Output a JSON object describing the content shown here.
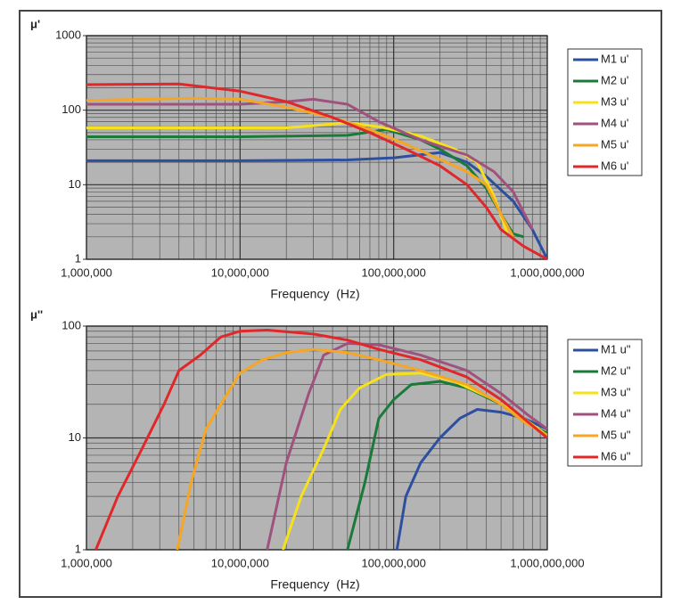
{
  "chart_data": [
    {
      "type": "line",
      "y_label": "μ'",
      "x_label": "Frequency  (Hz)",
      "xscale": "log",
      "yscale": "log",
      "xlim": [
        1000000,
        1000000000
      ],
      "ylim": [
        1,
        1000
      ],
      "xticks": [
        {
          "value": 1000000,
          "label": "1,000,000"
        },
        {
          "value": 10000000,
          "label": "10,000,000"
        },
        {
          "value": 100000000,
          "label": "100,000,000"
        },
        {
          "value": 1000000000,
          "label": "1,000,000,000"
        }
      ],
      "yticks": [
        1,
        10,
        100,
        1000
      ],
      "grid": true,
      "legend": "right",
      "series": [
        {
          "name": "M1 u'",
          "color": "#2e4fa0",
          "x": [
            1000000,
            10000000,
            50000000,
            100000000,
            200000000,
            300000000,
            400000000,
            600000000,
            800000000,
            1000000000
          ],
          "values": [
            21,
            21,
            21.5,
            23,
            27,
            20,
            13,
            6,
            2.5,
            1
          ]
        },
        {
          "name": "M2 u'",
          "color": "#1a7a3a",
          "x": [
            1000000,
            10000000,
            50000000,
            90000000,
            150000000,
            200000000,
            300000000,
            400000000,
            500000000,
            600000000,
            700000000
          ],
          "values": [
            44,
            44,
            46,
            55,
            40,
            30,
            18,
            9,
            4,
            2.2,
            2
          ]
        },
        {
          "name": "M3 u'",
          "color": "#f5e21a",
          "x": [
            1000000,
            20000000,
            30000000,
            50000000,
            80000000,
            150000000,
            250000000,
            350000000,
            450000000,
            550000000
          ],
          "values": [
            58,
            58,
            62,
            68,
            60,
            45,
            30,
            20,
            7,
            2.2
          ]
        },
        {
          "name": "M4 u'",
          "color": "#a0527e",
          "x": [
            1000000,
            10000000,
            20000000,
            30000000,
            50000000,
            80000000,
            150000000,
            300000000,
            450000000,
            600000000,
            800000000
          ],
          "values": [
            120,
            120,
            130,
            140,
            120,
            70,
            40,
            25,
            15,
            8,
            2.5
          ]
        },
        {
          "name": "M5 u'",
          "color": "#f5a623",
          "x": [
            1000000,
            5000000,
            10000000,
            20000000,
            40000000,
            70000000,
            120000000,
            200000000,
            300000000,
            400000000,
            500000000,
            600000000
          ],
          "values": [
            135,
            145,
            140,
            110,
            80,
            55,
            35,
            22,
            15,
            10,
            4,
            2
          ]
        },
        {
          "name": "M6 u'",
          "color": "#e0282a",
          "x": [
            1000000,
            4000000,
            10000000,
            20000000,
            40000000,
            70000000,
            120000000,
            200000000,
            300000000,
            400000000,
            500000000,
            700000000,
            1000000000
          ],
          "values": [
            220,
            225,
            180,
            130,
            80,
            50,
            30,
            18,
            10,
            5,
            2.5,
            1.5,
            1
          ]
        }
      ]
    },
    {
      "type": "line",
      "y_label": "μ''",
      "x_label": "Frequency  (Hz)",
      "xscale": "log",
      "yscale": "log",
      "xlim": [
        1000000,
        1000000000
      ],
      "ylim": [
        1,
        100
      ],
      "xticks": [
        {
          "value": 1000000,
          "label": "1,000,000"
        },
        {
          "value": 10000000,
          "label": "10,000,000"
        },
        {
          "value": 100000000,
          "label": "100,000,000"
        },
        {
          "value": 1000000000,
          "label": "1,000,000,000"
        }
      ],
      "yticks": [
        1,
        10,
        100
      ],
      "grid": true,
      "legend": "right",
      "series": [
        {
          "name": "M1 u\"",
          "color": "#2e4fa0",
          "x": [
            105000000,
            120000000,
            150000000,
            200000000,
            270000000,
            350000000,
            500000000,
            700000000,
            1000000000
          ],
          "values": [
            1,
            3,
            6,
            10,
            15,
            18,
            17,
            15,
            12
          ]
        },
        {
          "name": "M2 u\"",
          "color": "#1a7a3a",
          "x": [
            50000000,
            65000000,
            80000000,
            100000000,
            130000000,
            200000000,
            300000000,
            500000000,
            700000000,
            1000000000
          ],
          "values": [
            1,
            4,
            15,
            22,
            30,
            32,
            28,
            20,
            14,
            11
          ]
        },
        {
          "name": "M3 u\"",
          "color": "#f5e21a",
          "x": [
            19000000,
            25000000,
            35000000,
            45000000,
            60000000,
            90000000,
            150000000,
            250000000,
            450000000,
            700000000,
            1000000000
          ],
          "values": [
            1,
            3,
            8,
            18,
            28,
            37,
            38,
            32,
            22,
            15,
            10.5
          ]
        },
        {
          "name": "M4 u\"",
          "color": "#a0527e",
          "x": [
            15000000,
            20000000,
            28000000,
            35000000,
            50000000,
            80000000,
            150000000,
            300000000,
            500000000,
            750000000,
            1000000000
          ],
          "values": [
            1,
            6,
            25,
            55,
            70,
            68,
            55,
            40,
            25,
            16,
            12
          ]
        },
        {
          "name": "M5 u\"",
          "color": "#f5a623",
          "x": [
            3900000,
            4800000,
            6000000,
            7500000,
            10000000,
            14000000,
            20000000,
            30000000,
            50000000,
            80000000,
            150000000,
            300000000,
            500000000,
            700000000,
            1000000000
          ],
          "values": [
            1,
            4,
            12,
            20,
            38,
            50,
            58,
            62,
            58,
            50,
            40,
            30,
            20,
            14,
            10.5
          ]
        },
        {
          "name": "M6 u\"",
          "color": "#e0282a",
          "x": [
            1150000,
            1600000,
            2300000,
            3200000,
            4000000,
            5500000,
            7500000,
            10000000,
            15000000,
            30000000,
            50000000,
            80000000,
            150000000,
            300000000,
            500000000,
            700000000,
            1000000000
          ],
          "values": [
            1,
            3,
            8,
            20,
            40,
            55,
            80,
            90,
            92,
            85,
            75,
            62,
            50,
            35,
            22,
            15,
            10
          ]
        }
      ]
    }
  ]
}
